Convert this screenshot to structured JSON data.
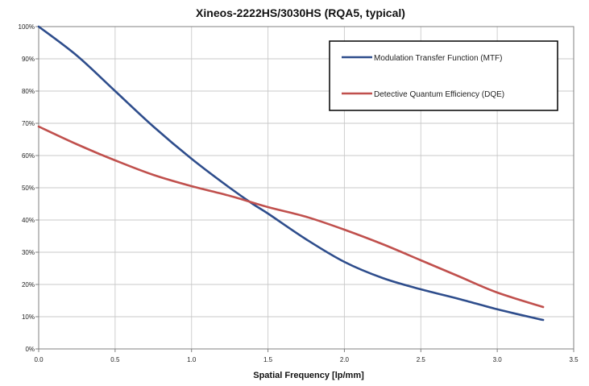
{
  "chart_data": {
    "type": "line",
    "title": "Xineos-2222HS/3030HS  (RQA5, typical)",
    "xlabel": "Spatial Frequency [lp/mm]",
    "ylabel": "",
    "xlim": [
      0,
      3.5
    ],
    "ylim": [
      0,
      100
    ],
    "x_ticks": [
      {
        "value": 0,
        "label": "0.0"
      },
      {
        "value": 0.5,
        "label": "0.5"
      },
      {
        "value": 1,
        "label": "1.0"
      },
      {
        "value": 1.5,
        "label": "1.5"
      },
      {
        "value": 2,
        "label": "2.0"
      },
      {
        "value": 2.5,
        "label": "2.5"
      },
      {
        "value": 3,
        "label": "3.0"
      },
      {
        "value": 3.5,
        "label": "3.5"
      }
    ],
    "y_ticks": [
      {
        "value": 0,
        "label": "0%"
      },
      {
        "value": 10,
        "label": "10%"
      },
      {
        "value": 20,
        "label": "20%"
      },
      {
        "value": 30,
        "label": "30%"
      },
      {
        "value": 40,
        "label": "40%"
      },
      {
        "value": 50,
        "label": "50%"
      },
      {
        "value": 60,
        "label": "60%"
      },
      {
        "value": 70,
        "label": "70%"
      },
      {
        "value": 80,
        "label": "80%"
      },
      {
        "value": 90,
        "label": "90%"
      },
      {
        "value": 100,
        "label": "100%"
      }
    ],
    "grid": true,
    "legend_position": "top-right",
    "series": [
      {
        "name": "Modulation Transfer Function (MTF)",
        "color": "#2e4d8c",
        "x": [
          0,
          0.25,
          0.5,
          0.75,
          1.0,
          1.25,
          1.4,
          1.5,
          1.75,
          2.0,
          2.25,
          2.5,
          2.75,
          3.0,
          3.25,
          3.3
        ],
        "y": [
          100,
          91,
          80,
          69,
          59,
          50,
          45,
          42,
          34,
          27,
          22,
          18.5,
          15.5,
          12.3,
          9.5,
          9
        ]
      },
      {
        "name": "Detective Quantum Efficiency (DQE)",
        "color": "#c0504d",
        "x": [
          0,
          0.25,
          0.5,
          0.75,
          1.0,
          1.25,
          1.5,
          1.75,
          2.0,
          2.25,
          2.5,
          2.75,
          3.0,
          3.3
        ],
        "y": [
          69,
          63.5,
          58.5,
          54,
          50.5,
          47.5,
          44,
          41,
          37,
          32.5,
          27.5,
          22.5,
          17.5,
          13
        ]
      }
    ]
  }
}
